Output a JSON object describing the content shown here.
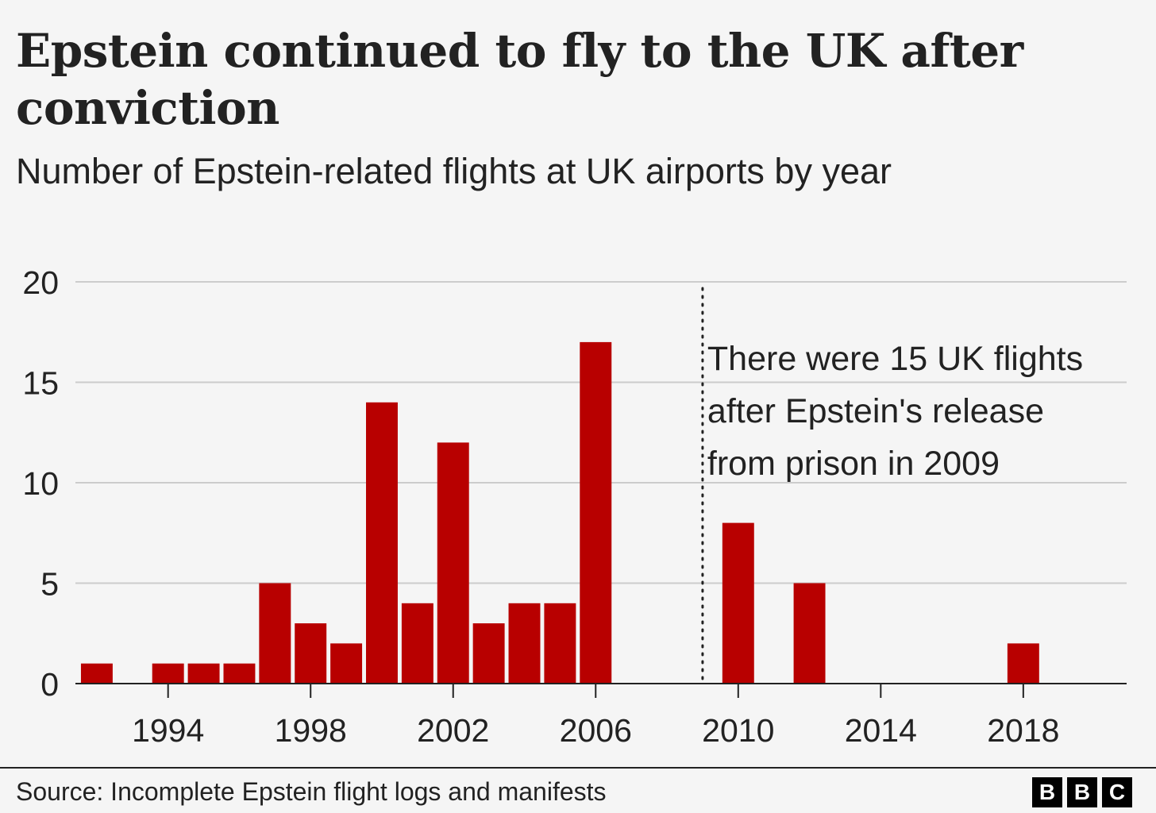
{
  "header": {
    "title": "Epstein continued to fly to the UK after conviction",
    "subtitle": "Number of Epstein-related flights at UK airports by year"
  },
  "footer": {
    "source": "Source: Incomplete Epstein flight logs and manifests",
    "logo_letters": [
      "B",
      "B",
      "C"
    ]
  },
  "colors": {
    "bar": "#b80000",
    "grid": "#cccccc",
    "axis": "#222222",
    "background": "#f5f5f5"
  },
  "chart_data": {
    "type": "bar",
    "title": "Epstein continued to fly to the UK after conviction",
    "subtitle": "Number of Epstein-related flights at UK airports by year",
    "xlabel": "",
    "ylabel": "",
    "xlim": [
      1991.4,
      2020.9
    ],
    "ylim": [
      0,
      20
    ],
    "yticks": [
      0,
      5,
      10,
      15,
      20
    ],
    "xticks": [
      1994,
      1998,
      2002,
      2006,
      2010,
      2014,
      2018
    ],
    "grid": true,
    "x": [
      1992,
      1993,
      1994,
      1995,
      1996,
      1997,
      1998,
      1999,
      2000,
      2001,
      2002,
      2003,
      2004,
      2005,
      2006,
      2007,
      2008,
      2009,
      2010,
      2011,
      2012,
      2013,
      2014,
      2015,
      2016,
      2017,
      2018,
      2019,
      2020
    ],
    "values": [
      1,
      0,
      1,
      1,
      1,
      5,
      3,
      2,
      14,
      4,
      12,
      3,
      4,
      4,
      17,
      0,
      0,
      0,
      8,
      0,
      5,
      0,
      0,
      0,
      0,
      0,
      2,
      0,
      0
    ],
    "annotation": {
      "x": 2009,
      "style": "dotted-line",
      "lines": [
        "There were 15 UK flights",
        "after Epstein's release",
        "from prison in 2009"
      ]
    }
  }
}
